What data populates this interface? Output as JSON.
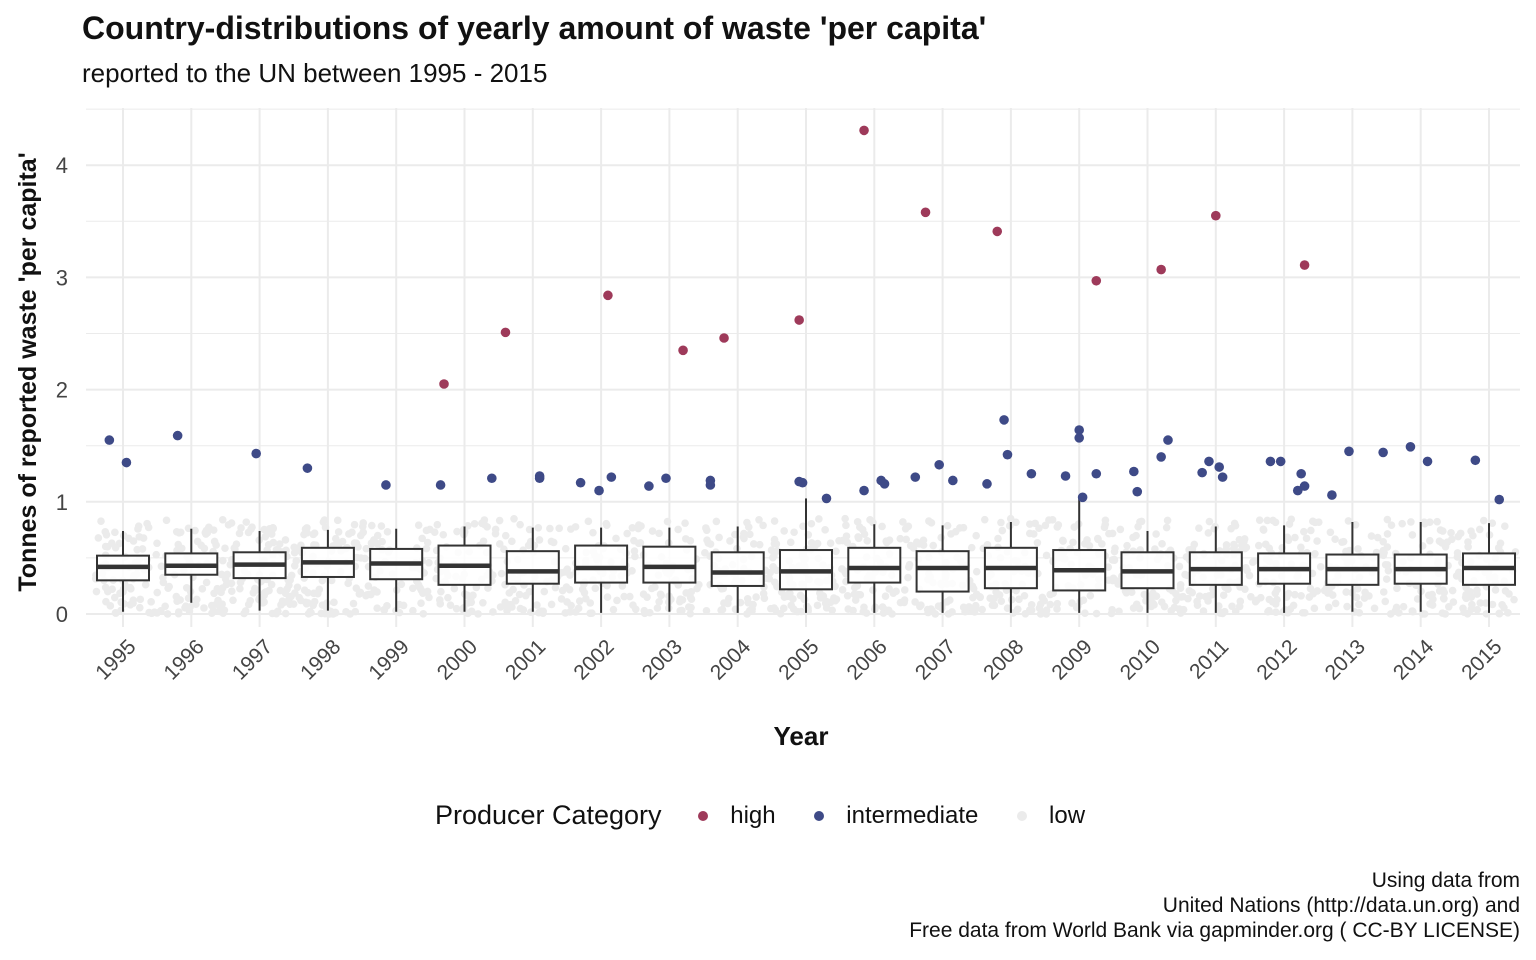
{
  "chart_data": {
    "type": "box",
    "title": "Country-distributions of yearly amount of waste 'per capita'",
    "subtitle": "reported to the UN between 1995 - 2015",
    "xlabel": "Year",
    "ylabel": "Tonnes of reported waste 'per capita'",
    "ylim": [
      -0.1,
      4.5
    ],
    "yticks": [
      0,
      1,
      2,
      3,
      4
    ],
    "categories": [
      "1995",
      "1996",
      "1997",
      "1998",
      "1999",
      "2000",
      "2001",
      "2002",
      "2003",
      "2004",
      "2005",
      "2006",
      "2007",
      "2008",
      "2009",
      "2010",
      "2011",
      "2012",
      "2013",
      "2014",
      "2015"
    ],
    "boxes": [
      {
        "year": "1995",
        "min": 0.02,
        "q1": 0.3,
        "median": 0.42,
        "q3": 0.52,
        "max": 0.74
      },
      {
        "year": "1996",
        "min": 0.1,
        "q1": 0.35,
        "median": 0.43,
        "q3": 0.54,
        "max": 0.76
      },
      {
        "year": "1997",
        "min": 0.03,
        "q1": 0.32,
        "median": 0.44,
        "q3": 0.55,
        "max": 0.74
      },
      {
        "year": "1998",
        "min": 0.03,
        "q1": 0.33,
        "median": 0.46,
        "q3": 0.59,
        "max": 0.75
      },
      {
        "year": "1999",
        "min": 0.02,
        "q1": 0.31,
        "median": 0.45,
        "q3": 0.58,
        "max": 0.76
      },
      {
        "year": "2000",
        "min": 0.02,
        "q1": 0.26,
        "median": 0.43,
        "q3": 0.61,
        "max": 0.78
      },
      {
        "year": "2001",
        "min": 0.02,
        "q1": 0.27,
        "median": 0.38,
        "q3": 0.56,
        "max": 0.77
      },
      {
        "year": "2002",
        "min": 0.01,
        "q1": 0.28,
        "median": 0.41,
        "q3": 0.61,
        "max": 0.77
      },
      {
        "year": "2003",
        "min": 0.02,
        "q1": 0.28,
        "median": 0.42,
        "q3": 0.6,
        "max": 0.77
      },
      {
        "year": "2004",
        "min": 0.01,
        "q1": 0.25,
        "median": 0.37,
        "q3": 0.55,
        "max": 0.78
      },
      {
        "year": "2005",
        "min": 0.01,
        "q1": 0.22,
        "median": 0.38,
        "q3": 0.57,
        "max": 1.03
      },
      {
        "year": "2006",
        "min": 0.01,
        "q1": 0.28,
        "median": 0.41,
        "q3": 0.59,
        "max": 0.8
      },
      {
        "year": "2007",
        "min": 0.01,
        "q1": 0.2,
        "median": 0.41,
        "q3": 0.56,
        "max": 0.79
      },
      {
        "year": "2008",
        "min": 0.01,
        "q1": 0.23,
        "median": 0.41,
        "q3": 0.59,
        "max": 0.82
      },
      {
        "year": "2009",
        "min": 0.01,
        "q1": 0.21,
        "median": 0.39,
        "q3": 0.57,
        "max": 1.05
      },
      {
        "year": "2010",
        "min": 0.01,
        "q1": 0.23,
        "median": 0.38,
        "q3": 0.55,
        "max": 0.74
      },
      {
        "year": "2011",
        "min": 0.01,
        "q1": 0.26,
        "median": 0.4,
        "q3": 0.55,
        "max": 0.78
      },
      {
        "year": "2012",
        "min": 0.01,
        "q1": 0.27,
        "median": 0.4,
        "q3": 0.54,
        "max": 0.79
      },
      {
        "year": "2013",
        "min": 0.02,
        "q1": 0.26,
        "median": 0.4,
        "q3": 0.53,
        "max": 0.82
      },
      {
        "year": "2014",
        "min": 0.02,
        "q1": 0.27,
        "median": 0.4,
        "q3": 0.53,
        "max": 0.82
      },
      {
        "year": "2015",
        "min": 0.01,
        "q1": 0.26,
        "median": 0.41,
        "q3": 0.54,
        "max": 0.81
      }
    ],
    "series": [
      {
        "name": "high",
        "color": "#9e3a5a",
        "points": [
          {
            "x": 1999.7,
            "y": 2.05
          },
          {
            "x": 2000.6,
            "y": 2.51
          },
          {
            "x": 2002.1,
            "y": 2.84
          },
          {
            "x": 2003.2,
            "y": 2.35
          },
          {
            "x": 2003.8,
            "y": 2.46
          },
          {
            "x": 2004.9,
            "y": 2.62
          },
          {
            "x": 2005.85,
            "y": 4.31
          },
          {
            "x": 2006.75,
            "y": 3.58
          },
          {
            "x": 2007.8,
            "y": 3.41
          },
          {
            "x": 2009.25,
            "y": 2.97
          },
          {
            "x": 2010.2,
            "y": 3.07
          },
          {
            "x": 2011.0,
            "y": 3.55
          },
          {
            "x": 2012.3,
            "y": 3.11
          }
        ]
      },
      {
        "name": "intermediate",
        "color": "#3e4a87",
        "points": [
          {
            "x": 1994.8,
            "y": 1.55
          },
          {
            "x": 1995.05,
            "y": 1.35
          },
          {
            "x": 1995.8,
            "y": 1.59
          },
          {
            "x": 1996.95,
            "y": 1.43
          },
          {
            "x": 1997.7,
            "y": 1.3
          },
          {
            "x": 1998.85,
            "y": 1.15
          },
          {
            "x": 1999.65,
            "y": 1.15
          },
          {
            "x": 2000.4,
            "y": 1.21
          },
          {
            "x": 2001.1,
            "y": 1.23
          },
          {
            "x": 2001.1,
            "y": 1.21
          },
          {
            "x": 2001.7,
            "y": 1.17
          },
          {
            "x": 2001.97,
            "y": 1.1
          },
          {
            "x": 2002.15,
            "y": 1.22
          },
          {
            "x": 2002.7,
            "y": 1.14
          },
          {
            "x": 2002.95,
            "y": 1.21
          },
          {
            "x": 2003.6,
            "y": 1.19
          },
          {
            "x": 2003.6,
            "y": 1.15
          },
          {
            "x": 2004.9,
            "y": 1.18
          },
          {
            "x": 2004.95,
            "y": 1.17
          },
          {
            "x": 2005.3,
            "y": 1.03
          },
          {
            "x": 2005.85,
            "y": 1.1
          },
          {
            "x": 2006.1,
            "y": 1.19
          },
          {
            "x": 2006.15,
            "y": 1.16
          },
          {
            "x": 2006.6,
            "y": 1.22
          },
          {
            "x": 2006.95,
            "y": 1.33
          },
          {
            "x": 2007.15,
            "y": 1.19
          },
          {
            "x": 2007.65,
            "y": 1.16
          },
          {
            "x": 2007.9,
            "y": 1.73
          },
          {
            "x": 2007.95,
            "y": 1.42
          },
          {
            "x": 2008.3,
            "y": 1.25
          },
          {
            "x": 2008.8,
            "y": 1.23
          },
          {
            "x": 2009.0,
            "y": 1.64
          },
          {
            "x": 2009.0,
            "y": 1.57
          },
          {
            "x": 2009.05,
            "y": 1.04
          },
          {
            "x": 2009.25,
            "y": 1.25
          },
          {
            "x": 2009.8,
            "y": 1.27
          },
          {
            "x": 2009.85,
            "y": 1.09
          },
          {
            "x": 2010.3,
            "y": 1.55
          },
          {
            "x": 2010.2,
            "y": 1.4
          },
          {
            "x": 2010.8,
            "y": 1.26
          },
          {
            "x": 2010.9,
            "y": 1.36
          },
          {
            "x": 2011.05,
            "y": 1.31
          },
          {
            "x": 2011.1,
            "y": 1.22
          },
          {
            "x": 2011.8,
            "y": 1.36
          },
          {
            "x": 2011.95,
            "y": 1.36
          },
          {
            "x": 2012.25,
            "y": 1.25
          },
          {
            "x": 2012.3,
            "y": 1.14
          },
          {
            "x": 2012.2,
            "y": 1.1
          },
          {
            "x": 2012.7,
            "y": 1.06
          },
          {
            "x": 2012.95,
            "y": 1.45
          },
          {
            "x": 2013.45,
            "y": 1.44
          },
          {
            "x": 2013.85,
            "y": 1.49
          },
          {
            "x": 2014.1,
            "y": 1.36
          },
          {
            "x": 2014.8,
            "y": 1.37
          },
          {
            "x": 2015.15,
            "y": 1.02
          }
        ]
      },
      {
        "name": "low",
        "color": "#ebebeb"
      }
    ],
    "legend": {
      "title": "Producer Category",
      "position": "bottom",
      "items": [
        "high",
        "intermediate",
        "low"
      ]
    },
    "grid": true,
    "caption": [
      "Using data from",
      "United Nations (http://data.un.org) and",
      "Free data from World Bank via gapminder.org ( CC-BY LICENSE)"
    ]
  }
}
